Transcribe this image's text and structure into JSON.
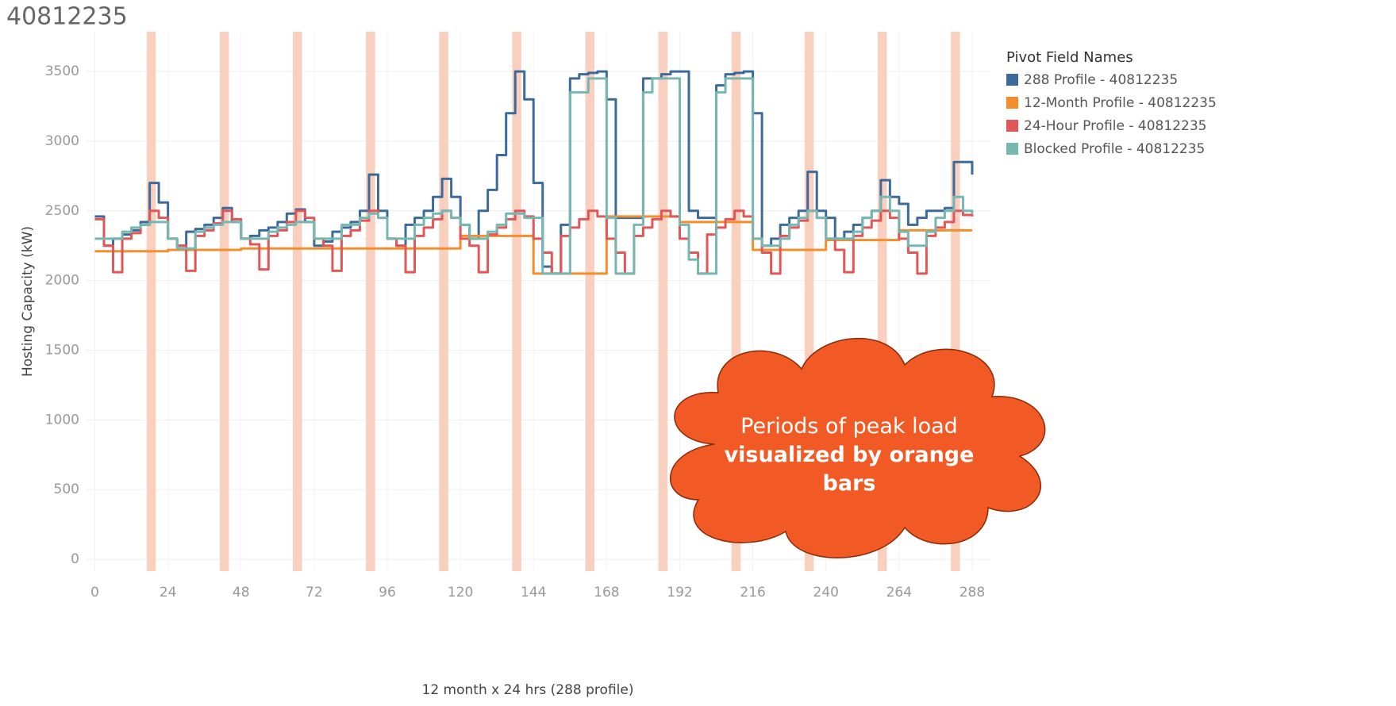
{
  "chart_data": {
    "type": "line",
    "title": "40812235",
    "x_label": "12 month x 24 hrs (288 profile)",
    "y_label": "Hosting Capacity (kW)",
    "legend_title": "Pivot Field Names",
    "legend_position": "right",
    "grid": true,
    "step": true,
    "xlim": [
      -3,
      294
    ],
    "ylim": [
      -85,
      3785
    ],
    "xticks": [
      0,
      24,
      48,
      72,
      96,
      120,
      144,
      168,
      192,
      216,
      240,
      264,
      288
    ],
    "yticks": [
      0,
      500,
      1000,
      1500,
      2000,
      2500,
      3000,
      3500
    ],
    "peak_color": "#f9cfc0",
    "peak_periods": [
      {
        "start": 17,
        "end": 20
      },
      {
        "start": 41,
        "end": 44
      },
      {
        "start": 65,
        "end": 68
      },
      {
        "start": 89,
        "end": 92
      },
      {
        "start": 113,
        "end": 116
      },
      {
        "start": 137,
        "end": 140
      },
      {
        "start": 161,
        "end": 164
      },
      {
        "start": 185,
        "end": 188
      },
      {
        "start": 209,
        "end": 212
      },
      {
        "start": 233,
        "end": 236
      },
      {
        "start": 257,
        "end": 260
      },
      {
        "start": 281,
        "end": 284
      }
    ],
    "annotation": {
      "text": "Periods of peak load",
      "emphasis": "visualized by orange bars"
    },
    "x": [
      0,
      3,
      6,
      9,
      12,
      15,
      18,
      21,
      24,
      27,
      30,
      33,
      36,
      39,
      42,
      45,
      48,
      51,
      54,
      57,
      60,
      63,
      66,
      69,
      72,
      75,
      78,
      81,
      84,
      87,
      90,
      93,
      96,
      99,
      102,
      105,
      108,
      111,
      114,
      117,
      120,
      123,
      126,
      129,
      132,
      135,
      138,
      141,
      144,
      147,
      150,
      153,
      156,
      159,
      162,
      165,
      168,
      171,
      174,
      177,
      180,
      183,
      186,
      189,
      192,
      195,
      198,
      201,
      204,
      207,
      210,
      213,
      216,
      219,
      222,
      225,
      228,
      231,
      234,
      237,
      240,
      243,
      246,
      249,
      252,
      255,
      258,
      261,
      264,
      267,
      270,
      273,
      276,
      279,
      282,
      285,
      288
    ],
    "series": [
      {
        "name": "288 Profile - 40812235",
        "color": "#3e6a9a",
        "values": [
          2460,
          2250,
          2300,
          2330,
          2360,
          2420,
          2700,
          2560,
          2300,
          2250,
          2350,
          2370,
          2400,
          2450,
          2520,
          2420,
          2300,
          2320,
          2360,
          2380,
          2420,
          2480,
          2510,
          2420,
          2250,
          2280,
          2350,
          2380,
          2420,
          2500,
          2760,
          2500,
          2300,
          2250,
          2400,
          2450,
          2500,
          2600,
          2730,
          2600,
          2400,
          2300,
          2500,
          2650,
          2900,
          3200,
          3500,
          3300,
          2700,
          2100,
          2050,
          2400,
          3450,
          3480,
          3490,
          3500,
          3300,
          2450,
          2450,
          2450,
          3450,
          3450,
          3480,
          3500,
          3500,
          2500,
          2450,
          2450,
          3400,
          3480,
          3490,
          3500,
          3200,
          2250,
          2300,
          2400,
          2450,
          2500,
          2780,
          2500,
          2450,
          2300,
          2350,
          2400,
          2450,
          2500,
          2720,
          2600,
          2550,
          2400,
          2450,
          2500,
          2500,
          2520,
          2850,
          2850,
          2760
        ]
      },
      {
        "name": "12-Month Profile - 40812235",
        "color": "#f28e2b",
        "values": [
          2210,
          2210,
          2210,
          2210,
          2210,
          2210,
          2210,
          2210,
          2220,
          2220,
          2220,
          2220,
          2220,
          2220,
          2220,
          2220,
          2230,
          2230,
          2230,
          2230,
          2230,
          2230,
          2230,
          2230,
          2230,
          2230,
          2230,
          2230,
          2230,
          2230,
          2230,
          2230,
          2230,
          2230,
          2230,
          2230,
          2230,
          2230,
          2230,
          2230,
          2320,
          2320,
          2320,
          2320,
          2320,
          2320,
          2320,
          2320,
          2050,
          2050,
          2050,
          2050,
          2050,
          2050,
          2050,
          2050,
          2460,
          2460,
          2460,
          2460,
          2460,
          2460,
          2460,
          2460,
          2420,
          2420,
          2420,
          2420,
          2420,
          2420,
          2420,
          2420,
          2220,
          2220,
          2220,
          2220,
          2220,
          2220,
          2220,
          2220,
          2290,
          2290,
          2290,
          2290,
          2290,
          2290,
          2290,
          2290,
          2360,
          2360,
          2360,
          2360,
          2360,
          2360,
          2360,
          2360,
          2360
        ]
      },
      {
        "name": "24-Hour Profile - 40812235",
        "color": "#e15759",
        "values": [
          2440,
          2250,
          2060,
          2300,
          2340,
          2400,
          2500,
          2450,
          2300,
          2250,
          2070,
          2320,
          2360,
          2410,
          2500,
          2440,
          2300,
          2260,
          2080,
          2320,
          2360,
          2420,
          2500,
          2450,
          2300,
          2250,
          2070,
          2320,
          2360,
          2430,
          2500,
          2450,
          2300,
          2250,
          2060,
          2320,
          2380,
          2440,
          2500,
          2450,
          2300,
          2250,
          2060,
          2330,
          2380,
          2440,
          2500,
          2460,
          2300,
          2200,
          2050,
          2320,
          2380,
          2440,
          2500,
          2460,
          2300,
          2200,
          2050,
          2320,
          2380,
          2440,
          2500,
          2460,
          2300,
          2200,
          2050,
          2330,
          2380,
          2440,
          2500,
          2460,
          2300,
          2200,
          2050,
          2320,
          2380,
          2430,
          2500,
          2450,
          2300,
          2220,
          2060,
          2320,
          2380,
          2430,
          2500,
          2450,
          2300,
          2200,
          2050,
          2320,
          2380,
          2420,
          2500,
          2470,
          2460
        ]
      },
      {
        "name": "Blocked Profile - 40812235",
        "color": "#76b7b2",
        "values": [
          2300,
          2300,
          2300,
          2350,
          2380,
          2400,
          2420,
          2420,
          2300,
          2230,
          2230,
          2350,
          2380,
          2400,
          2420,
          2420,
          2300,
          2300,
          2300,
          2350,
          2380,
          2400,
          2420,
          2420,
          2300,
          2300,
          2300,
          2400,
          2400,
          2450,
          2480,
          2450,
          2300,
          2300,
          2300,
          2400,
          2450,
          2480,
          2500,
          2450,
          2400,
          2300,
          2300,
          2350,
          2400,
          2480,
          2480,
          2450,
          2450,
          2050,
          2050,
          2050,
          3350,
          3350,
          3450,
          3450,
          2450,
          2050,
          2050,
          2400,
          3350,
          3450,
          3450,
          3450,
          2400,
          2150,
          2050,
          2050,
          3350,
          3450,
          3450,
          3450,
          2300,
          2250,
          2250,
          2300,
          2400,
          2450,
          2500,
          2450,
          2300,
          2300,
          2300,
          2350,
          2450,
          2500,
          2600,
          2500,
          2350,
          2250,
          2250,
          2350,
          2450,
          2500,
          2600,
          2500,
          2480
        ]
      }
    ]
  }
}
